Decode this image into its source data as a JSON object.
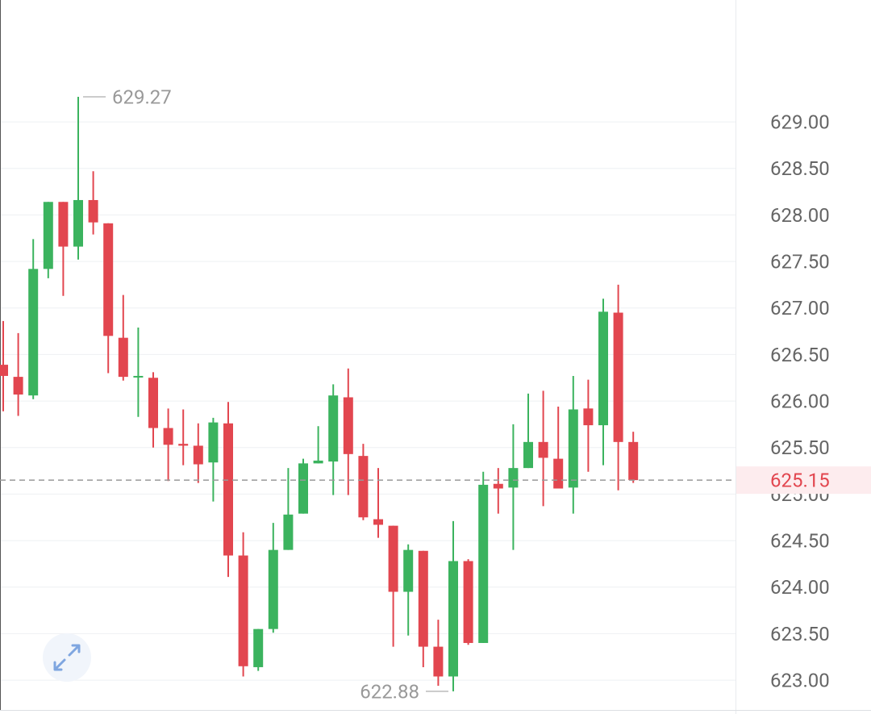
{
  "chart_data": {
    "type": "candlestick",
    "up_color": "#3bb35e",
    "down_color": "#e2464f",
    "grid": true,
    "ylim": [
      622.68,
      630.31
    ],
    "yticks": [
      {
        "value": 623.0,
        "label": "623.00"
      },
      {
        "value": 623.5,
        "label": "623.50"
      },
      {
        "value": 624.0,
        "label": "624.00"
      },
      {
        "value": 624.5,
        "label": "624.50"
      },
      {
        "value": 625.0,
        "label": "625.00"
      },
      {
        "value": 625.5,
        "label": "625.50"
      },
      {
        "value": 626.0,
        "label": "626.00"
      },
      {
        "value": 626.5,
        "label": "626.50"
      },
      {
        "value": 627.0,
        "label": "627.00"
      },
      {
        "value": 627.5,
        "label": "627.50"
      },
      {
        "value": 628.0,
        "label": "628.00"
      },
      {
        "value": 628.5,
        "label": "628.50"
      },
      {
        "value": 629.0,
        "label": "629.00"
      }
    ],
    "open": [
      626.39,
      626.26,
      626.06,
      627.42,
      628.14,
      627.66,
      628.16,
      627.91,
      626.68,
      626.26,
      626.25,
      625.71,
      625.54,
      625.52,
      625.34,
      625.76,
      624.34,
      623.14,
      623.55,
      624.4,
      624.79,
      625.33,
      625.35,
      626.04,
      625.41,
      624.73,
      624.66,
      623.95,
      624.39,
      623.36,
      623.04,
      624.28,
      623.4,
      625.11,
      625.07,
      625.28,
      625.56,
      625.38,
      625.07,
      625.92,
      625.74,
      626.95,
      625.56
    ],
    "high": [
      626.86,
      626.73,
      627.74,
      628.14,
      628.14,
      629.27,
      628.47,
      627.91,
      627.14,
      626.79,
      626.31,
      625.92,
      625.91,
      625.76,
      625.82,
      625.99,
      624.59,
      623.55,
      624.69,
      625.28,
      625.38,
      625.73,
      626.18,
      626.35,
      625.54,
      625.28,
      624.66,
      624.46,
      624.39,
      623.65,
      624.71,
      624.3,
      625.24,
      625.28,
      625.75,
      626.08,
      626.11,
      625.94,
      626.27,
      626.23,
      627.1,
      627.25,
      625.67
    ],
    "low": [
      625.89,
      625.84,
      626.02,
      627.32,
      627.13,
      627.52,
      627.79,
      626.3,
      626.22,
      625.83,
      625.5,
      625.14,
      625.31,
      625.12,
      624.92,
      624.11,
      623.04,
      623.1,
      623.51,
      624.4,
      624.79,
      625.33,
      624.99,
      624.99,
      624.72,
      624.53,
      623.36,
      623.48,
      623.14,
      622.94,
      622.88,
      623.38,
      623.4,
      624.79,
      624.4,
      625.28,
      624.87,
      625.06,
      624.79,
      625.24,
      625.31,
      625.04,
      625.12
    ],
    "close": [
      626.27,
      626.07,
      627.42,
      628.14,
      627.66,
      628.16,
      627.92,
      626.7,
      626.26,
      626.27,
      625.71,
      625.53,
      625.52,
      625.32,
      625.77,
      624.34,
      623.15,
      623.55,
      624.4,
      624.78,
      625.33,
      625.36,
      626.06,
      625.43,
      624.75,
      624.67,
      623.95,
      624.4,
      623.36,
      623.04,
      624.28,
      623.4,
      625.1,
      625.06,
      625.28,
      625.56,
      625.39,
      625.06,
      625.91,
      625.74,
      626.96,
      625.56,
      625.15
    ],
    "annotations": {
      "high": 629.27,
      "low": 622.88,
      "last_price": 625.15
    }
  }
}
